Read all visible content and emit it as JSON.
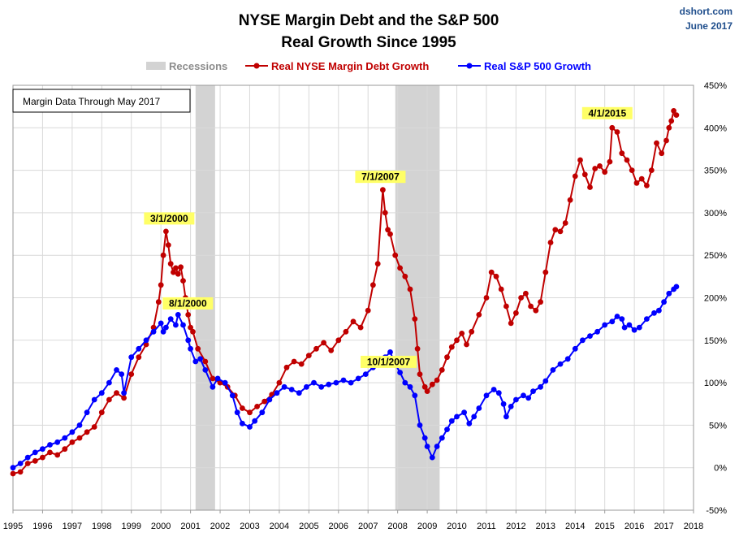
{
  "header": {
    "title_line1": "NYSE Margin Debt and the S&P 500",
    "title_line2": "Real Growth Since 1995",
    "brand": "dshort.com",
    "date": "June 2017"
  },
  "note_box": "Margin Data Through May 2017",
  "colors": {
    "margin": "#c00000",
    "sp500": "#0000ff",
    "recession": "#d3d3d3",
    "annotation_bg": "#ffff66"
  },
  "chart_data": {
    "type": "line",
    "xlim": [
      1995.0,
      2018.0
    ],
    "ylim": [
      -50,
      450
    ],
    "y_unit": "%",
    "x_ticks": [
      "1995",
      "1996",
      "1997",
      "1998",
      "1999",
      "2000",
      "2001",
      "2002",
      "2003",
      "2004",
      "2005",
      "2006",
      "2007",
      "2008",
      "2009",
      "2010",
      "2011",
      "2012",
      "2013",
      "2014",
      "2015",
      "2016",
      "2017",
      "2018"
    ],
    "y_ticks": [
      "-50%",
      "0%",
      "50%",
      "100%",
      "150%",
      "200%",
      "250%",
      "300%",
      "350%",
      "400%",
      "450%"
    ],
    "legend": {
      "placement": "top",
      "items": [
        "Recessions",
        "Real NYSE Margin Debt Growth",
        "Real S&P 500 Growth"
      ]
    },
    "recessions": [
      {
        "start": 2001.17,
        "end": 2001.83
      },
      {
        "start": 2007.92,
        "end": 2009.42
      }
    ],
    "annotations": [
      {
        "text": "3/1/2000",
        "x": 2000.17,
        "y": 278
      },
      {
        "text": "8/1/2000",
        "x": 2000.58,
        "y": 180
      },
      {
        "text": "7/1/2007",
        "x": 2007.5,
        "y": 327
      },
      {
        "text": "10/1/2007",
        "x": 2007.75,
        "y": 136
      },
      {
        "text": "4/1/2015",
        "x": 2015.25,
        "y": 400
      }
    ],
    "series": [
      {
        "name": "Real NYSE Margin Debt Growth",
        "color": "#c00000",
        "points": [
          [
            1995.0,
            -7
          ],
          [
            1995.25,
            -5
          ],
          [
            1995.5,
            5
          ],
          [
            1995.75,
            8
          ],
          [
            1996.0,
            12
          ],
          [
            1996.25,
            18
          ],
          [
            1996.5,
            15
          ],
          [
            1996.75,
            22
          ],
          [
            1997.0,
            30
          ],
          [
            1997.25,
            35
          ],
          [
            1997.5,
            42
          ],
          [
            1997.75,
            48
          ],
          [
            1998.0,
            65
          ],
          [
            1998.25,
            80
          ],
          [
            1998.5,
            88
          ],
          [
            1998.75,
            82
          ],
          [
            1999.0,
            110
          ],
          [
            1999.25,
            130
          ],
          [
            1999.5,
            145
          ],
          [
            1999.75,
            165
          ],
          [
            1999.92,
            195
          ],
          [
            2000.0,
            215
          ],
          [
            2000.08,
            250
          ],
          [
            2000.17,
            278
          ],
          [
            2000.25,
            262
          ],
          [
            2000.33,
            240
          ],
          [
            2000.42,
            230
          ],
          [
            2000.5,
            235
          ],
          [
            2000.58,
            228
          ],
          [
            2000.67,
            236
          ],
          [
            2000.75,
            220
          ],
          [
            2000.83,
            200
          ],
          [
            2000.92,
            180
          ],
          [
            2001.0,
            165
          ],
          [
            2001.08,
            160
          ],
          [
            2001.25,
            140
          ],
          [
            2001.5,
            125
          ],
          [
            2001.75,
            105
          ],
          [
            2002.0,
            100
          ],
          [
            2002.25,
            95
          ],
          [
            2002.5,
            85
          ],
          [
            2002.75,
            70
          ],
          [
            2003.0,
            65
          ],
          [
            2003.25,
            72
          ],
          [
            2003.5,
            78
          ],
          [
            2003.75,
            86
          ],
          [
            2004.0,
            100
          ],
          [
            2004.25,
            118
          ],
          [
            2004.5,
            125
          ],
          [
            2004.75,
            122
          ],
          [
            2005.0,
            132
          ],
          [
            2005.25,
            140
          ],
          [
            2005.5,
            147
          ],
          [
            2005.75,
            138
          ],
          [
            2006.0,
            150
          ],
          [
            2006.25,
            160
          ],
          [
            2006.5,
            172
          ],
          [
            2006.75,
            165
          ],
          [
            2007.0,
            185
          ],
          [
            2007.17,
            215
          ],
          [
            2007.33,
            240
          ],
          [
            2007.5,
            327
          ],
          [
            2007.58,
            300
          ],
          [
            2007.67,
            280
          ],
          [
            2007.75,
            275
          ],
          [
            2007.92,
            250
          ],
          [
            2008.08,
            235
          ],
          [
            2008.25,
            225
          ],
          [
            2008.42,
            210
          ],
          [
            2008.58,
            175
          ],
          [
            2008.67,
            140
          ],
          [
            2008.75,
            110
          ],
          [
            2008.92,
            95
          ],
          [
            2009.0,
            90
          ],
          [
            2009.17,
            98
          ],
          [
            2009.33,
            103
          ],
          [
            2009.5,
            115
          ],
          [
            2009.67,
            130
          ],
          [
            2009.83,
            142
          ],
          [
            2010.0,
            150
          ],
          [
            2010.17,
            158
          ],
          [
            2010.33,
            145
          ],
          [
            2010.5,
            160
          ],
          [
            2010.75,
            180
          ],
          [
            2011.0,
            200
          ],
          [
            2011.17,
            230
          ],
          [
            2011.33,
            225
          ],
          [
            2011.5,
            210
          ],
          [
            2011.67,
            190
          ],
          [
            2011.83,
            170
          ],
          [
            2012.0,
            182
          ],
          [
            2012.17,
            200
          ],
          [
            2012.33,
            205
          ],
          [
            2012.5,
            190
          ],
          [
            2012.67,
            185
          ],
          [
            2012.83,
            195
          ],
          [
            2013.0,
            230
          ],
          [
            2013.17,
            265
          ],
          [
            2013.33,
            280
          ],
          [
            2013.5,
            278
          ],
          [
            2013.67,
            288
          ],
          [
            2013.83,
            315
          ],
          [
            2014.0,
            343
          ],
          [
            2014.17,
            362
          ],
          [
            2014.33,
            345
          ],
          [
            2014.5,
            330
          ],
          [
            2014.67,
            352
          ],
          [
            2014.83,
            355
          ],
          [
            2015.0,
            348
          ],
          [
            2015.17,
            360
          ],
          [
            2015.25,
            400
          ],
          [
            2015.42,
            395
          ],
          [
            2015.58,
            370
          ],
          [
            2015.75,
            362
          ],
          [
            2015.92,
            350
          ],
          [
            2016.08,
            335
          ],
          [
            2016.25,
            340
          ],
          [
            2016.42,
            332
          ],
          [
            2016.58,
            350
          ],
          [
            2016.75,
            382
          ],
          [
            2016.92,
            370
          ],
          [
            2017.08,
            385
          ],
          [
            2017.17,
            400
          ],
          [
            2017.25,
            408
          ],
          [
            2017.33,
            420
          ],
          [
            2017.42,
            415
          ]
        ]
      },
      {
        "name": "Real S&P 500 Growth",
        "color": "#0000ff",
        "points": [
          [
            1995.0,
            0
          ],
          [
            1995.25,
            5
          ],
          [
            1995.5,
            12
          ],
          [
            1995.75,
            18
          ],
          [
            1996.0,
            22
          ],
          [
            1996.25,
            27
          ],
          [
            1996.5,
            30
          ],
          [
            1996.75,
            35
          ],
          [
            1997.0,
            42
          ],
          [
            1997.25,
            50
          ],
          [
            1997.5,
            65
          ],
          [
            1997.75,
            80
          ],
          [
            1998.0,
            88
          ],
          [
            1998.25,
            100
          ],
          [
            1998.5,
            115
          ],
          [
            1998.67,
            110
          ],
          [
            1998.75,
            88
          ],
          [
            1999.0,
            130
          ],
          [
            1999.25,
            140
          ],
          [
            1999.5,
            150
          ],
          [
            1999.75,
            160
          ],
          [
            2000.0,
            170
          ],
          [
            2000.08,
            160
          ],
          [
            2000.17,
            165
          ],
          [
            2000.33,
            175
          ],
          [
            2000.5,
            168
          ],
          [
            2000.58,
            180
          ],
          [
            2000.75,
            168
          ],
          [
            2000.92,
            150
          ],
          [
            2001.0,
            140
          ],
          [
            2001.17,
            125
          ],
          [
            2001.33,
            128
          ],
          [
            2001.5,
            115
          ],
          [
            2001.75,
            95
          ],
          [
            2001.92,
            105
          ],
          [
            2002.17,
            100
          ],
          [
            2002.42,
            85
          ],
          [
            2002.58,
            65
          ],
          [
            2002.75,
            52
          ],
          [
            2003.0,
            48
          ],
          [
            2003.17,
            55
          ],
          [
            2003.42,
            65
          ],
          [
            2003.67,
            80
          ],
          [
            2003.92,
            88
          ],
          [
            2004.17,
            95
          ],
          [
            2004.42,
            92
          ],
          [
            2004.67,
            88
          ],
          [
            2004.92,
            95
          ],
          [
            2005.17,
            100
          ],
          [
            2005.42,
            95
          ],
          [
            2005.67,
            98
          ],
          [
            2005.92,
            100
          ],
          [
            2006.17,
            103
          ],
          [
            2006.42,
            100
          ],
          [
            2006.67,
            105
          ],
          [
            2006.92,
            110
          ],
          [
            2007.17,
            118
          ],
          [
            2007.42,
            125
          ],
          [
            2007.58,
            130
          ],
          [
            2007.75,
            136
          ],
          [
            2007.92,
            122
          ],
          [
            2008.08,
            112
          ],
          [
            2008.25,
            100
          ],
          [
            2008.42,
            95
          ],
          [
            2008.58,
            85
          ],
          [
            2008.75,
            50
          ],
          [
            2008.92,
            35
          ],
          [
            2009.0,
            25
          ],
          [
            2009.17,
            12
          ],
          [
            2009.33,
            25
          ],
          [
            2009.5,
            35
          ],
          [
            2009.67,
            45
          ],
          [
            2009.83,
            55
          ],
          [
            2010.0,
            60
          ],
          [
            2010.25,
            65
          ],
          [
            2010.42,
            52
          ],
          [
            2010.58,
            60
          ],
          [
            2010.75,
            70
          ],
          [
            2011.0,
            85
          ],
          [
            2011.25,
            92
          ],
          [
            2011.42,
            88
          ],
          [
            2011.58,
            75
          ],
          [
            2011.67,
            60
          ],
          [
            2011.83,
            72
          ],
          [
            2012.0,
            80
          ],
          [
            2012.25,
            85
          ],
          [
            2012.42,
            82
          ],
          [
            2012.58,
            90
          ],
          [
            2012.83,
            95
          ],
          [
            2013.0,
            102
          ],
          [
            2013.25,
            115
          ],
          [
            2013.5,
            122
          ],
          [
            2013.75,
            128
          ],
          [
            2014.0,
            140
          ],
          [
            2014.25,
            150
          ],
          [
            2014.5,
            155
          ],
          [
            2014.75,
            160
          ],
          [
            2015.0,
            168
          ],
          [
            2015.25,
            172
          ],
          [
            2015.42,
            178
          ],
          [
            2015.58,
            175
          ],
          [
            2015.67,
            165
          ],
          [
            2015.83,
            168
          ],
          [
            2016.0,
            162
          ],
          [
            2016.17,
            165
          ],
          [
            2016.42,
            175
          ],
          [
            2016.67,
            182
          ],
          [
            2016.83,
            185
          ],
          [
            2017.0,
            195
          ],
          [
            2017.17,
            205
          ],
          [
            2017.33,
            210
          ],
          [
            2017.42,
            213
          ]
        ]
      }
    ]
  }
}
